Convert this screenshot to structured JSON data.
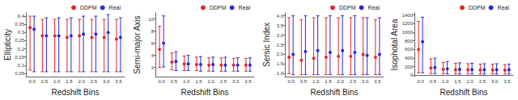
{
  "chart_data": [
    {
      "type": "scatter",
      "xlabel": "Redshift Bins",
      "ylabel": "Ellipticity",
      "categories": [
        "0.0",
        "0.5",
        "1.0",
        "1.5",
        "2.0",
        "2.5",
        "3.0",
        "3.5"
      ],
      "ylim": [
        0.03,
        0.42
      ],
      "yticks": [
        0.05,
        0.1,
        0.15,
        0.2,
        0.25,
        0.3,
        0.35,
        0.4
      ],
      "grid": false,
      "legend": "upper right",
      "series": [
        {
          "name": "DDPM",
          "color": "#e0282e",
          "marker": "circle",
          "values": [
            0.33,
            0.28,
            0.28,
            0.27,
            0.28,
            0.27,
            0.27,
            0.26
          ],
          "lower": [
            0.07,
            0.06,
            0.06,
            0.06,
            0.06,
            0.06,
            0.06,
            0.06
          ],
          "upper": [
            0.4,
            0.38,
            0.38,
            0.38,
            0.38,
            0.38,
            0.38,
            0.38
          ]
        },
        {
          "name": "Real",
          "color": "#2a2ad8",
          "marker": "circle",
          "values": [
            0.32,
            0.28,
            0.28,
            0.28,
            0.29,
            0.29,
            0.3,
            0.27
          ],
          "lower": [
            0.06,
            0.06,
            0.06,
            0.06,
            0.06,
            0.06,
            0.06,
            0.06
          ],
          "upper": [
            0.4,
            0.39,
            0.39,
            0.39,
            0.4,
            0.4,
            0.41,
            0.39
          ]
        }
      ]
    },
    {
      "type": "scatter",
      "xlabel": "Redshift Bins",
      "ylabel": "Semi-major Axis",
      "categories": [
        "0.0",
        "0.5",
        "1.0",
        "1.5",
        "2.0",
        "2.5",
        "3.0",
        "3.5"
      ],
      "ylim": [
        0.5,
        11
      ],
      "yticks": [
        2,
        4,
        6,
        8,
        10
      ],
      "grid": false,
      "legend": "upper right",
      "series": [
        {
          "name": "DDPM",
          "color": "#e0282e",
          "marker": "circle",
          "values": [
            5.0,
            2.9,
            2.6,
            2.5,
            2.4,
            2.4,
            2.4,
            2.4
          ],
          "lower": [
            2.0,
            1.6,
            1.5,
            1.5,
            1.4,
            1.4,
            1.4,
            1.4
          ],
          "upper": [
            8.8,
            4.4,
            3.9,
            3.7,
            3.6,
            3.6,
            3.5,
            3.5
          ]
        },
        {
          "name": "Real",
          "color": "#2a2ad8",
          "marker": "circle",
          "values": [
            6.0,
            3.0,
            2.6,
            2.5,
            2.5,
            2.4,
            2.4,
            2.4
          ],
          "lower": [
            2.1,
            1.5,
            1.5,
            1.4,
            1.4,
            1.4,
            1.4,
            1.4
          ],
          "upper": [
            10.5,
            4.6,
            4.0,
            3.8,
            3.7,
            3.7,
            3.6,
            3.6
          ]
        }
      ]
    },
    {
      "type": "scatter",
      "xlabel": "Redshift Bins",
      "ylabel": "Sersic Index",
      "categories": [
        "0.0",
        "0.5",
        "1.0",
        "1.5",
        "2.0",
        "2.5",
        "3.0",
        "3.5"
      ],
      "ylim": [
        0.85,
        4.15
      ],
      "yticks": [
        {
          "value": 1,
          "label": "1.0"
        },
        1.5,
        {
          "value": 2,
          "label": "2.0"
        },
        2.5,
        {
          "value": 3,
          "label": "3.0"
        },
        3.5,
        {
          "value": 4,
          "label": "4.0"
        }
      ],
      "grid": false,
      "legend": "upper right",
      "series": [
        {
          "name": "DDPM",
          "color": "#e0282e",
          "marker": "circle",
          "values": [
            1.85,
            1.7,
            1.8,
            1.85,
            1.9,
            1.9,
            2.0,
            1.85
          ],
          "lower": [
            1.0,
            0.95,
            0.95,
            0.95,
            0.95,
            0.95,
            0.95,
            0.95
          ],
          "upper": [
            3.9,
            3.8,
            3.9,
            3.9,
            3.9,
            3.9,
            3.9,
            3.8
          ]
        },
        {
          "name": "Real",
          "color": "#2a2ad8",
          "marker": "circle",
          "values": [
            2.0,
            2.15,
            2.2,
            2.1,
            2.2,
            2.1,
            1.95,
            2.0
          ],
          "lower": [
            0.95,
            0.95,
            0.95,
            0.95,
            0.95,
            0.95,
            0.95,
            0.95
          ],
          "upper": [
            4.0,
            4.0,
            4.0,
            4.0,
            4.0,
            4.0,
            3.9,
            3.9
          ]
        }
      ]
    },
    {
      "type": "scatter",
      "xlabel": "Redshift Bins",
      "ylabel": "Isophotal Area",
      "categories": [
        "0.0",
        "0.5",
        "1.0",
        "1.5",
        "2.0",
        "2.5",
        "3.0",
        "3.5"
      ],
      "ylim": [
        -30,
        1450
      ],
      "yticks": [
        0,
        200,
        400,
        600,
        800,
        1000,
        1200,
        1400
      ],
      "grid": false,
      "legend": "upper right",
      "series": [
        {
          "name": "DDPM",
          "color": "#e0282e",
          "marker": "circle",
          "values": [
            600,
            170,
            140,
            130,
            130,
            125,
            125,
            120
          ],
          "lower": [
            60,
            40,
            35,
            30,
            30,
            30,
            30,
            30
          ],
          "upper": [
            1250,
            380,
            300,
            280,
            270,
            260,
            260,
            250
          ]
        },
        {
          "name": "Real",
          "color": "#2a2ad8",
          "marker": "circle",
          "values": [
            780,
            180,
            150,
            140,
            135,
            130,
            130,
            130
          ],
          "lower": [
            60,
            40,
            35,
            30,
            30,
            30,
            30,
            30
          ],
          "upper": [
            1350,
            400,
            320,
            290,
            280,
            270,
            270,
            260
          ]
        }
      ]
    }
  ]
}
